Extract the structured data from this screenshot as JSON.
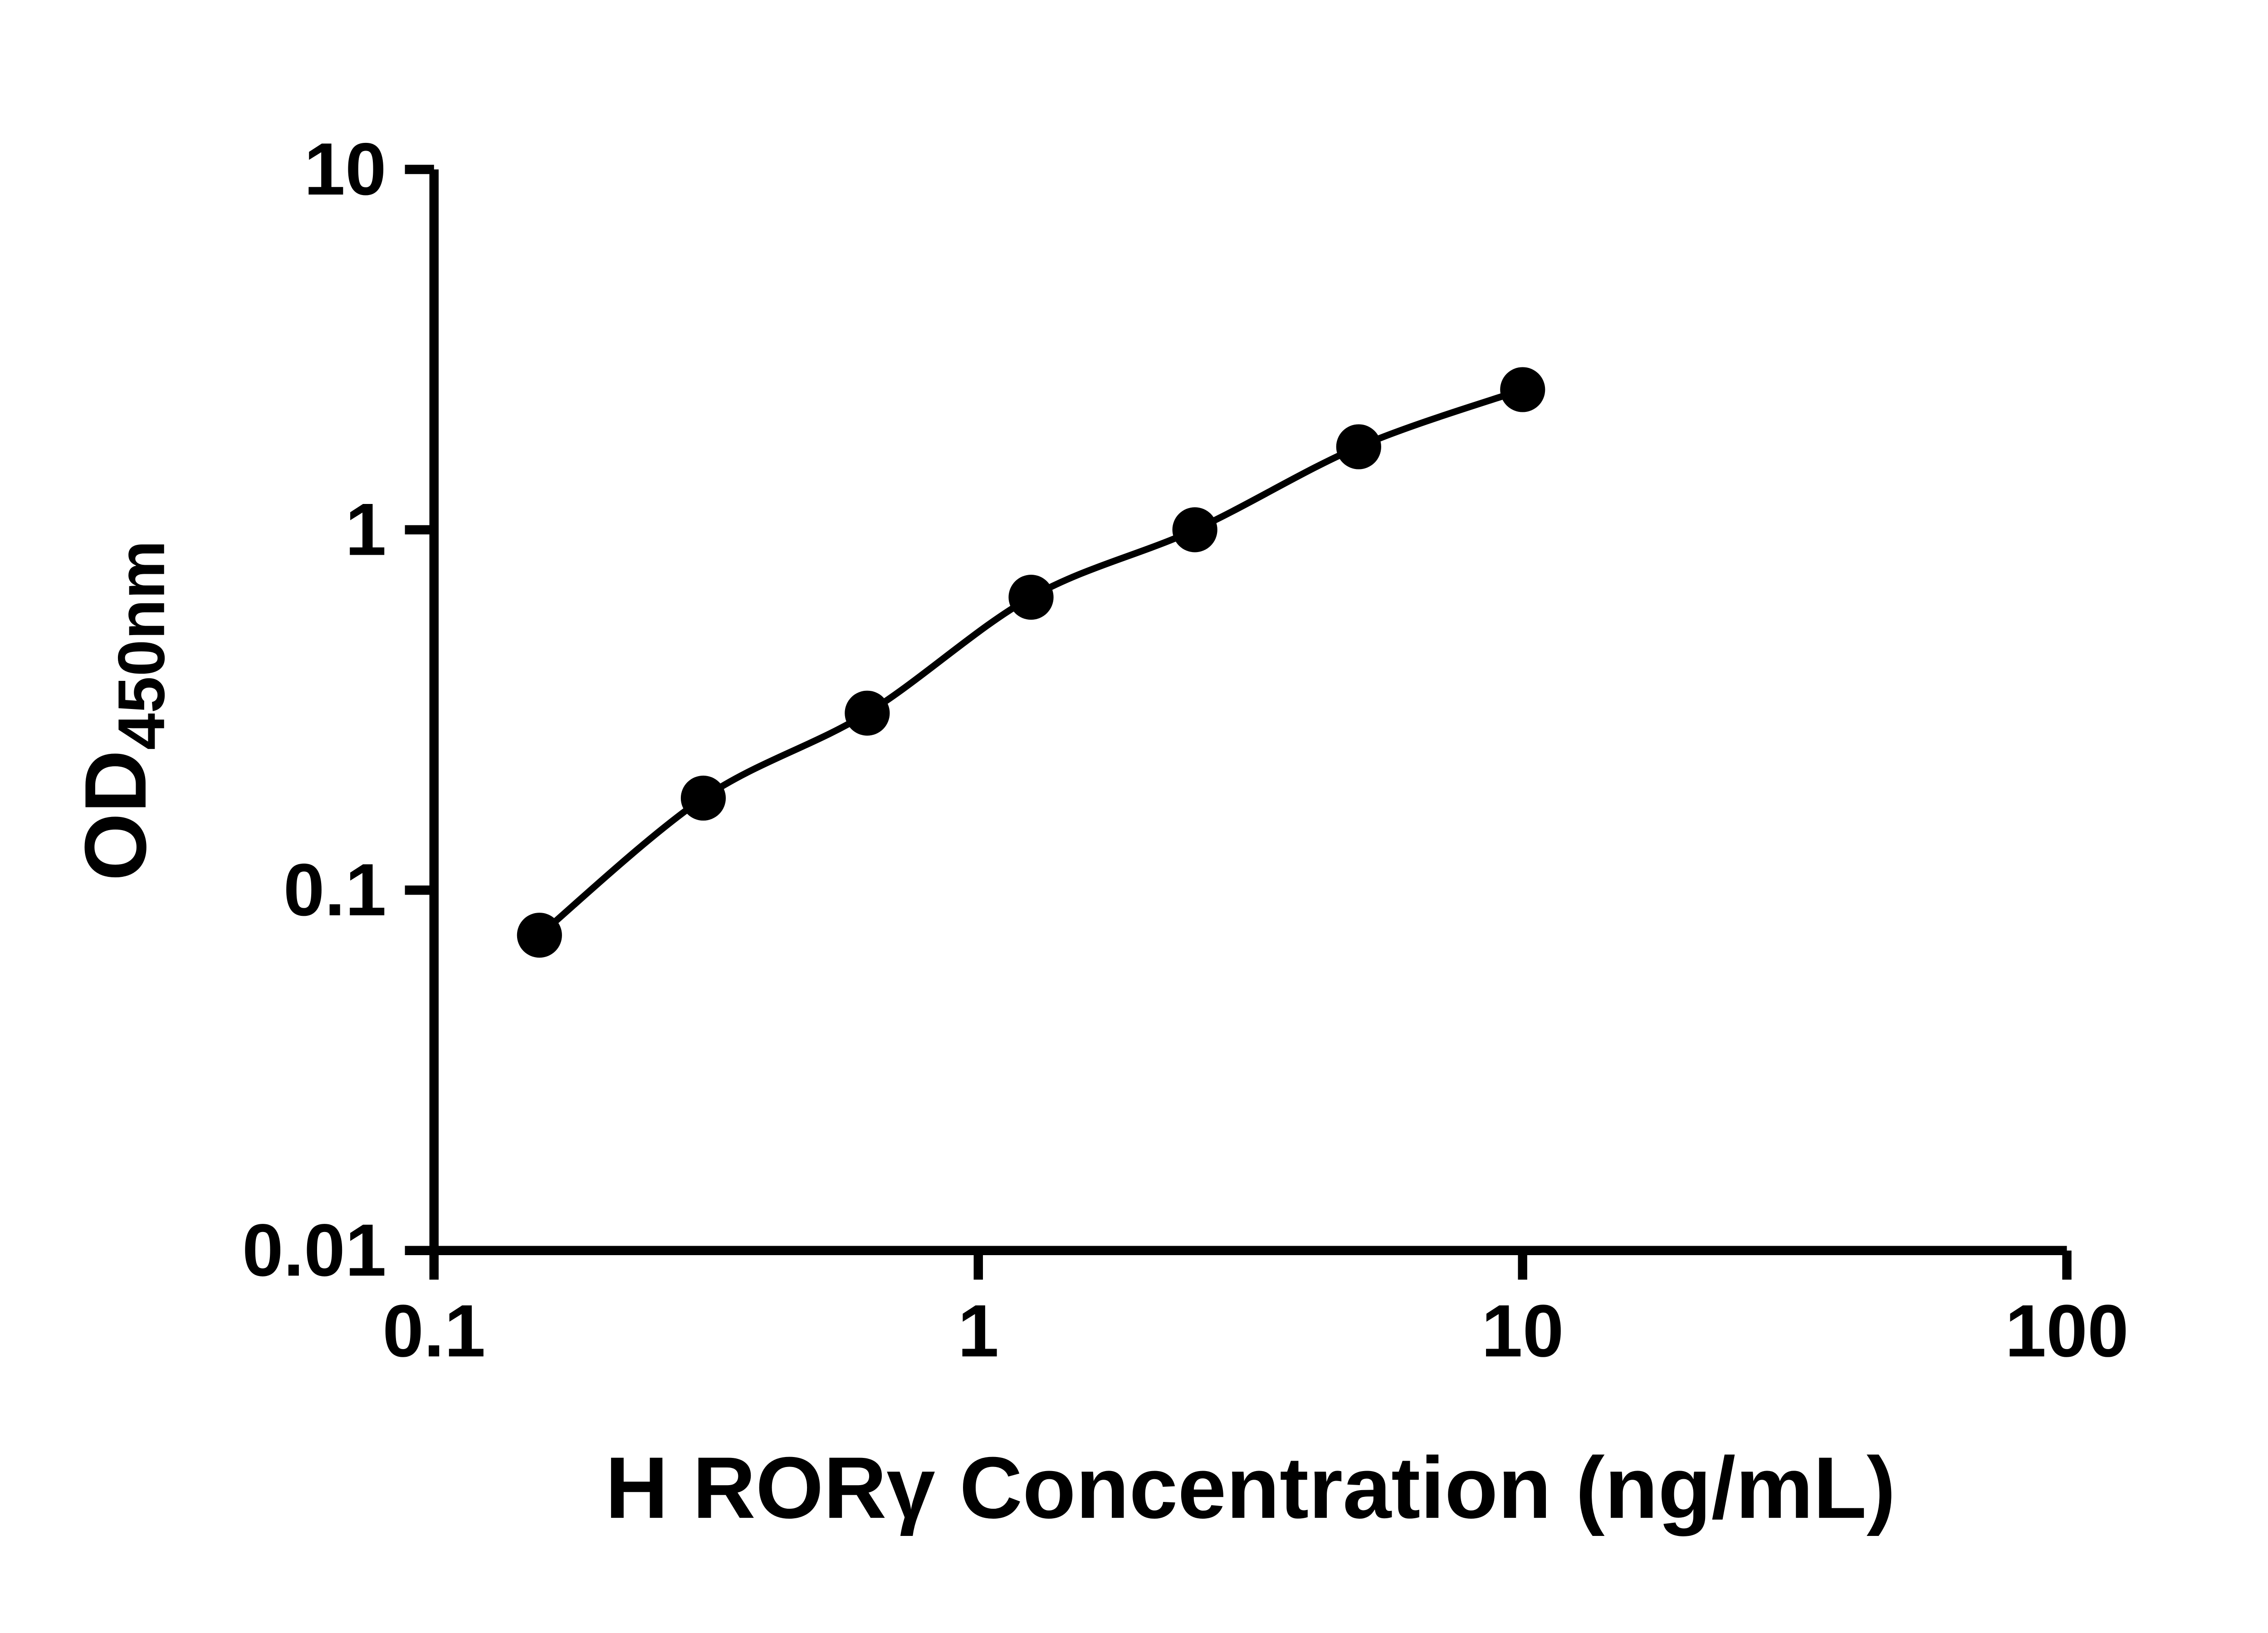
{
  "chart_data": {
    "type": "scatter",
    "title": "",
    "xlabel": "H RORγ Concentration (ng/mL)",
    "ylabel_main": "OD",
    "ylabel_sub": "450nm",
    "x_scale": "log",
    "y_scale": "log",
    "xlim": [
      0.1,
      100
    ],
    "ylim": [
      0.01,
      10
    ],
    "x_ticks": [
      0.1,
      1,
      10,
      100
    ],
    "x_tick_labels": [
      "0.1",
      "1",
      "10",
      "100"
    ],
    "y_ticks": [
      0.01,
      0.1,
      1,
      10
    ],
    "y_tick_labels": [
      "0.01",
      "0.1",
      "1",
      "10"
    ],
    "grid": false,
    "legend": false,
    "line_style": "smooth",
    "marker": "circle",
    "marker_color": "#000000",
    "line_color": "#000000",
    "axis_color": "#000000",
    "background": "#ffffff",
    "series": [
      {
        "x": [
          0.15625,
          0.3125,
          0.625,
          1.25,
          2.5,
          5,
          10
        ],
        "y": [
          0.075,
          0.18,
          0.31,
          0.65,
          1.0,
          1.7,
          2.45
        ]
      }
    ]
  }
}
